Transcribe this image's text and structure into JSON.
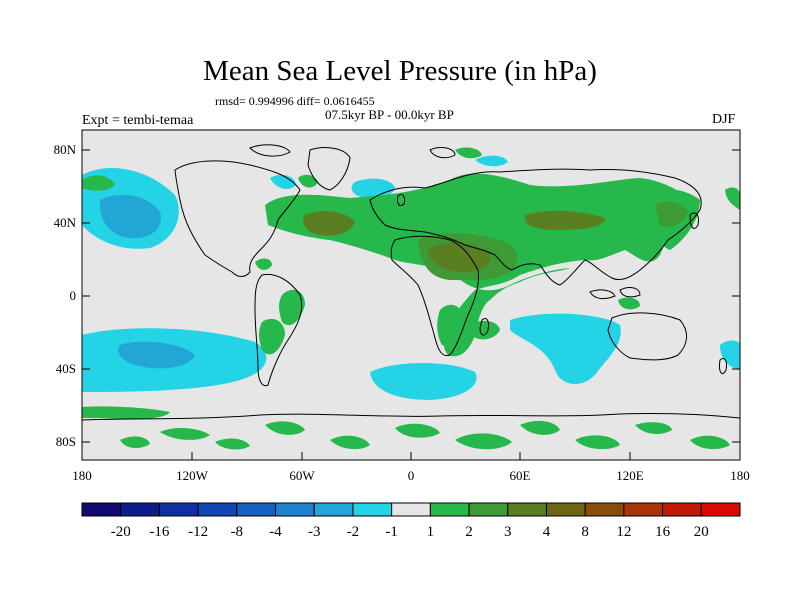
{
  "title": "Mean Sea Level Pressure (in hPa)",
  "stats_text": "rmsd= 0.994996 diff= 0.0616455",
  "period_text": "07.5kyr BP - 00.0kyr BP",
  "expt_text": "Expt = tembi-temaa",
  "season_text": "DJF",
  "y_axis_ticks": [
    "80N",
    "40N",
    "0",
    "40S",
    "80S"
  ],
  "x_axis_ticks": [
    "180",
    "120W",
    "60W",
    "0",
    "60E",
    "120E",
    "180"
  ],
  "colorbar": {
    "labels": [
      "-20",
      "-16",
      "-12",
      "-8",
      "-4",
      "-3",
      "-2",
      "-1",
      "1",
      "2",
      "3",
      "4",
      "8",
      "12",
      "16",
      "20"
    ],
    "colors": [
      "#120a6e",
      "#0d1c8c",
      "#0f2fa4",
      "#1245b5",
      "#1660c6",
      "#1f82d0",
      "#21a6d6",
      "#24d4e6",
      "#e6e6e6",
      "#26b84a",
      "#3e9a34",
      "#5a7f20",
      "#6f6615",
      "#8a4c0c",
      "#a83408",
      "#c21a06",
      "#d80a03"
    ]
  },
  "map_colors": {
    "ocean_bg": "#e6e6e6",
    "coast": "#000000",
    "light_cyan": "#24d4e6",
    "cyan": "#21a6d6",
    "blue": "#1660c6",
    "dark_blue": "#0f2fa4",
    "green": "#26b84a",
    "dark_green": "#3e9a34",
    "olive": "#5a7f20",
    "brown": "#6f6615"
  }
}
